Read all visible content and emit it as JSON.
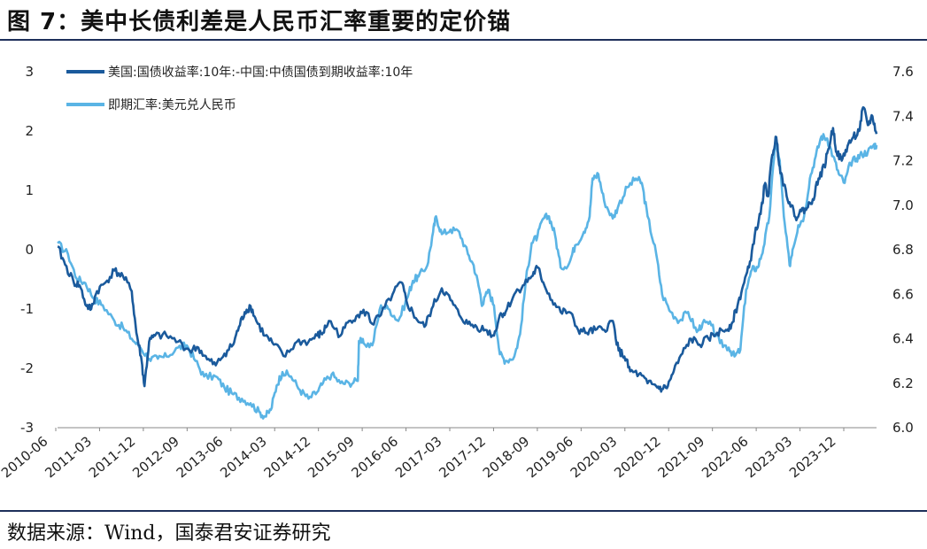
{
  "title": "图 7：美中长债利差是人民币汇率重要的定价锚",
  "source": "数据来源：Wind，国泰君安证券研究",
  "chart_data": {
    "type": "line",
    "title": "美中长债利差是人民币汇率重要的定价锚",
    "x_labels": [
      "2010-06",
      "2011-03",
      "2011-12",
      "2012-09",
      "2013-06",
      "2014-03",
      "2014-12",
      "2015-09",
      "2016-06",
      "2017-03",
      "2017-12",
      "2018-09",
      "2019-06",
      "2020-03",
      "2020-12",
      "2021-09",
      "2022-06",
      "2023-03",
      "2023-12"
    ],
    "x_range": [
      2010.42,
      2024.55
    ],
    "y_left": {
      "range": [
        -3,
        3
      ],
      "ticks": [
        "3",
        "2",
        "1",
        "0",
        "-1",
        "-2",
        "-3"
      ],
      "tick_values": [
        3,
        2,
        1,
        0,
        -1,
        -2,
        -3
      ]
    },
    "y_right": {
      "range": [
        6.0,
        7.6
      ],
      "ticks": [
        "7.6",
        "7.4",
        "7.2",
        "7.0",
        "6.8",
        "6.6",
        "6.4",
        "6.2",
        "6.0"
      ],
      "tick_values": [
        7.6,
        7.4,
        7.2,
        7.0,
        6.8,
        6.6,
        6.4,
        6.2,
        6.0
      ]
    },
    "series": [
      {
        "name": "美国:国债收益率:10年:-中国:中债国债到期收益率:10年",
        "axis": "left",
        "color": "#1a5a9c",
        "points": [
          [
            2010.42,
            0.05
          ],
          [
            2010.55,
            -0.25
          ],
          [
            2010.7,
            -0.55
          ],
          [
            2010.8,
            -0.6
          ],
          [
            2010.92,
            -0.95
          ],
          [
            2011.0,
            -1.0
          ],
          [
            2011.1,
            -0.7
          ],
          [
            2011.25,
            -0.55
          ],
          [
            2011.4,
            -0.35
          ],
          [
            2011.55,
            -0.45
          ],
          [
            2011.7,
            -0.7
          ],
          [
            2011.78,
            -1.4
          ],
          [
            2011.86,
            -1.8
          ],
          [
            2011.92,
            -2.3
          ],
          [
            2012.0,
            -1.55
          ],
          [
            2012.1,
            -1.45
          ],
          [
            2012.3,
            -1.45
          ],
          [
            2012.5,
            -1.55
          ],
          [
            2012.7,
            -1.7
          ],
          [
            2012.85,
            -1.65
          ],
          [
            2013.0,
            -1.85
          ],
          [
            2013.15,
            -1.95
          ],
          [
            2013.3,
            -1.75
          ],
          [
            2013.45,
            -1.6
          ],
          [
            2013.55,
            -1.3
          ],
          [
            2013.65,
            -1.05
          ],
          [
            2013.75,
            -0.95
          ],
          [
            2013.85,
            -1.2
          ],
          [
            2014.0,
            -1.45
          ],
          [
            2014.15,
            -1.6
          ],
          [
            2014.35,
            -1.8
          ],
          [
            2014.55,
            -1.55
          ],
          [
            2014.75,
            -1.55
          ],
          [
            2014.9,
            -1.45
          ],
          [
            2015.0,
            -1.4
          ],
          [
            2015.1,
            -1.2
          ],
          [
            2015.3,
            -1.45
          ],
          [
            2015.45,
            -1.2
          ],
          [
            2015.6,
            -1.1
          ],
          [
            2015.75,
            -1.05
          ],
          [
            2015.85,
            -1.25
          ],
          [
            2016.0,
            -1.1
          ],
          [
            2016.2,
            -0.75
          ],
          [
            2016.35,
            -0.55
          ],
          [
            2016.45,
            -0.9
          ],
          [
            2016.6,
            -1.15
          ],
          [
            2016.75,
            -1.3
          ],
          [
            2016.9,
            -0.95
          ],
          [
            2017.05,
            -0.65
          ],
          [
            2017.2,
            -0.85
          ],
          [
            2017.35,
            -1.1
          ],
          [
            2017.5,
            -1.25
          ],
          [
            2017.65,
            -1.3
          ],
          [
            2017.8,
            -1.35
          ],
          [
            2017.95,
            -1.45
          ],
          [
            2018.05,
            -1.1
          ],
          [
            2018.15,
            -1.05
          ],
          [
            2018.3,
            -0.75
          ],
          [
            2018.45,
            -0.6
          ],
          [
            2018.6,
            -0.45
          ],
          [
            2018.7,
            -0.3
          ],
          [
            2018.8,
            -0.55
          ],
          [
            2018.95,
            -0.85
          ],
          [
            2019.1,
            -1.05
          ],
          [
            2019.25,
            -1.05
          ],
          [
            2019.4,
            -1.35
          ],
          [
            2019.55,
            -1.4
          ],
          [
            2019.7,
            -1.35
          ],
          [
            2019.85,
            -1.35
          ],
          [
            2020.0,
            -1.2
          ],
          [
            2020.1,
            -1.7
          ],
          [
            2020.2,
            -1.8
          ],
          [
            2020.3,
            -2.05
          ],
          [
            2020.45,
            -2.1
          ],
          [
            2020.6,
            -2.25
          ],
          [
            2020.75,
            -2.3
          ],
          [
            2020.85,
            -2.35
          ],
          [
            2020.95,
            -2.3
          ],
          [
            2021.05,
            -2.05
          ],
          [
            2021.2,
            -1.75
          ],
          [
            2021.35,
            -1.5
          ],
          [
            2021.5,
            -1.6
          ],
          [
            2021.65,
            -1.5
          ],
          [
            2021.8,
            -1.4
          ],
          [
            2021.95,
            -1.35
          ],
          [
            2022.05,
            -1.25
          ],
          [
            2022.15,
            -0.95
          ],
          [
            2022.25,
            -0.6
          ],
          [
            2022.35,
            -0.3
          ],
          [
            2022.45,
            0.25
          ],
          [
            2022.55,
            0.6
          ],
          [
            2022.62,
            1.1
          ],
          [
            2022.68,
            0.9
          ],
          [
            2022.75,
            1.6
          ],
          [
            2022.82,
            1.9
          ],
          [
            2022.88,
            1.4
          ],
          [
            2022.95,
            1.1
          ],
          [
            2023.05,
            0.8
          ],
          [
            2023.15,
            0.55
          ],
          [
            2023.25,
            0.65
          ],
          [
            2023.35,
            0.7
          ],
          [
            2023.45,
            0.85
          ],
          [
            2023.55,
            1.2
          ],
          [
            2023.65,
            1.4
          ],
          [
            2023.72,
            1.7
          ],
          [
            2023.8,
            2.05
          ],
          [
            2023.86,
            1.65
          ],
          [
            2023.95,
            1.5
          ],
          [
            2024.05,
            1.75
          ],
          [
            2024.15,
            1.9
          ],
          [
            2024.25,
            2.0
          ],
          [
            2024.32,
            2.4
          ],
          [
            2024.4,
            2.1
          ],
          [
            2024.48,
            2.25
          ],
          [
            2024.55,
            1.95
          ]
        ]
      },
      {
        "name": "即期汇率:美元兑人民币",
        "axis": "right",
        "color": "#5ab4e5",
        "points": [
          [
            2010.42,
            6.83
          ],
          [
            2010.6,
            6.78
          ],
          [
            2010.75,
            6.67
          ],
          [
            2010.9,
            6.65
          ],
          [
            2011.05,
            6.58
          ],
          [
            2011.2,
            6.55
          ],
          [
            2011.4,
            6.48
          ],
          [
            2011.55,
            6.45
          ],
          [
            2011.7,
            6.4
          ],
          [
            2011.85,
            6.36
          ],
          [
            2012.0,
            6.31
          ],
          [
            2012.15,
            6.31
          ],
          [
            2012.3,
            6.32
          ],
          [
            2012.5,
            6.36
          ],
          [
            2012.65,
            6.37
          ],
          [
            2012.8,
            6.3
          ],
          [
            2012.95,
            6.23
          ],
          [
            2013.15,
            6.23
          ],
          [
            2013.3,
            6.18
          ],
          [
            2013.45,
            6.15
          ],
          [
            2013.6,
            6.13
          ],
          [
            2013.75,
            6.11
          ],
          [
            2013.9,
            6.07
          ],
          [
            2014.0,
            6.05
          ],
          [
            2014.1,
            6.08
          ],
          [
            2014.2,
            6.19
          ],
          [
            2014.3,
            6.25
          ],
          [
            2014.45,
            6.23
          ],
          [
            2014.6,
            6.17
          ],
          [
            2014.75,
            6.13
          ],
          [
            2014.9,
            6.16
          ],
          [
            2015.0,
            6.2
          ],
          [
            2015.15,
            6.24
          ],
          [
            2015.3,
            6.2
          ],
          [
            2015.45,
            6.2
          ],
          [
            2015.6,
            6.21
          ],
          [
            2015.62,
            6.39
          ],
          [
            2015.7,
            6.38
          ],
          [
            2015.85,
            6.37
          ],
          [
            2016.0,
            6.55
          ],
          [
            2016.15,
            6.53
          ],
          [
            2016.3,
            6.48
          ],
          [
            2016.45,
            6.58
          ],
          [
            2016.55,
            6.66
          ],
          [
            2016.65,
            6.68
          ],
          [
            2016.8,
            6.73
          ],
          [
            2016.9,
            6.88
          ],
          [
            2016.95,
            6.95
          ],
          [
            2017.05,
            6.87
          ],
          [
            2017.2,
            6.89
          ],
          [
            2017.35,
            6.88
          ],
          [
            2017.5,
            6.78
          ],
          [
            2017.6,
            6.73
          ],
          [
            2017.7,
            6.62
          ],
          [
            2017.75,
            6.55
          ],
          [
            2017.85,
            6.62
          ],
          [
            2017.95,
            6.55
          ],
          [
            2018.05,
            6.33
          ],
          [
            2018.15,
            6.3
          ],
          [
            2018.3,
            6.32
          ],
          [
            2018.4,
            6.42
          ],
          [
            2018.5,
            6.66
          ],
          [
            2018.6,
            6.83
          ],
          [
            2018.7,
            6.86
          ],
          [
            2018.8,
            6.94
          ],
          [
            2018.9,
            6.95
          ],
          [
            2019.0,
            6.87
          ],
          [
            2019.1,
            6.72
          ],
          [
            2019.25,
            6.74
          ],
          [
            2019.35,
            6.82
          ],
          [
            2019.5,
            6.88
          ],
          [
            2019.6,
            6.95
          ],
          [
            2019.65,
            7.12
          ],
          [
            2019.75,
            7.14
          ],
          [
            2019.85,
            7.02
          ],
          [
            2020.0,
            6.94
          ],
          [
            2020.1,
            7.0
          ],
          [
            2020.25,
            7.08
          ],
          [
            2020.4,
            7.12
          ],
          [
            2020.5,
            7.1
          ],
          [
            2020.6,
            6.95
          ],
          [
            2020.75,
            6.78
          ],
          [
            2020.85,
            6.6
          ],
          [
            2021.0,
            6.52
          ],
          [
            2021.15,
            6.48
          ],
          [
            2021.3,
            6.52
          ],
          [
            2021.45,
            6.43
          ],
          [
            2021.55,
            6.47
          ],
          [
            2021.7,
            6.46
          ],
          [
            2021.85,
            6.38
          ],
          [
            2022.0,
            6.36
          ],
          [
            2022.1,
            6.32
          ],
          [
            2022.2,
            6.35
          ],
          [
            2022.3,
            6.62
          ],
          [
            2022.4,
            6.71
          ],
          [
            2022.5,
            6.72
          ],
          [
            2022.6,
            6.81
          ],
          [
            2022.7,
            6.95
          ],
          [
            2022.8,
            7.28
          ],
          [
            2022.88,
            7.2
          ],
          [
            2022.95,
            6.95
          ],
          [
            2023.05,
            6.73
          ],
          [
            2023.1,
            6.8
          ],
          [
            2023.2,
            6.91
          ],
          [
            2023.3,
            6.95
          ],
          [
            2023.4,
            7.12
          ],
          [
            2023.5,
            7.22
          ],
          [
            2023.6,
            7.31
          ],
          [
            2023.7,
            7.3
          ],
          [
            2023.8,
            7.22
          ],
          [
            2023.9,
            7.14
          ],
          [
            2024.0,
            7.1
          ],
          [
            2024.1,
            7.19
          ],
          [
            2024.2,
            7.21
          ],
          [
            2024.3,
            7.23
          ],
          [
            2024.4,
            7.24
          ],
          [
            2024.5,
            7.27
          ],
          [
            2024.55,
            7.27
          ]
        ]
      }
    ]
  }
}
